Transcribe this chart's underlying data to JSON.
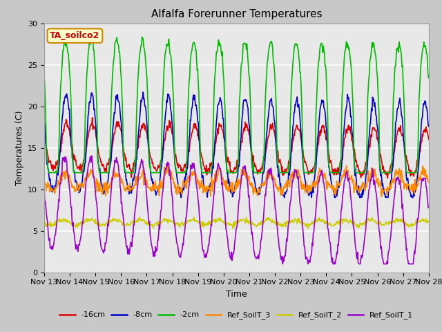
{
  "title": "Alfalfa Forerunner Temperatures",
  "xlabel": "Time",
  "ylabel": "Temperatures (C)",
  "ylim": [
    0,
    30
  ],
  "fig_facecolor": "#c8c8c8",
  "plot_bg_color": "#e8e8e8",
  "annotation_text": "TA_soilco2",
  "annotation_color": "#cc0000",
  "annotation_bg": "#ffffcc",
  "annotation_border": "#cc8800",
  "series_colors": {
    "-16cm": "#dd0000",
    "-8cm": "#0000cc",
    "-2cm": "#00bb00",
    "Ref_SoilT_3": "#ff8800",
    "Ref_SoilT_2": "#cccc00",
    "Ref_SoilT_1": "#9900cc"
  },
  "tick_dates": [
    "Nov 13",
    "Nov 14",
    "Nov 15",
    "Nov 16",
    "Nov 17",
    "Nov 18",
    "Nov 19",
    "Nov 20",
    "Nov 21",
    "Nov 22",
    "Nov 23",
    "Nov 24",
    "Nov 25",
    "Nov 26",
    "Nov 27",
    "Nov 28"
  ],
  "legend_colors": [
    "#dd0000",
    "#0000cc",
    "#00bb00",
    "#ff8800",
    "#cccc00",
    "#9900cc"
  ],
  "legend_labels": [
    "-16cm",
    "-8cm",
    "-2cm",
    "Ref_SoilT_3",
    "Ref_SoilT_2",
    "Ref_SoilT_1"
  ],
  "lw": 1.2
}
